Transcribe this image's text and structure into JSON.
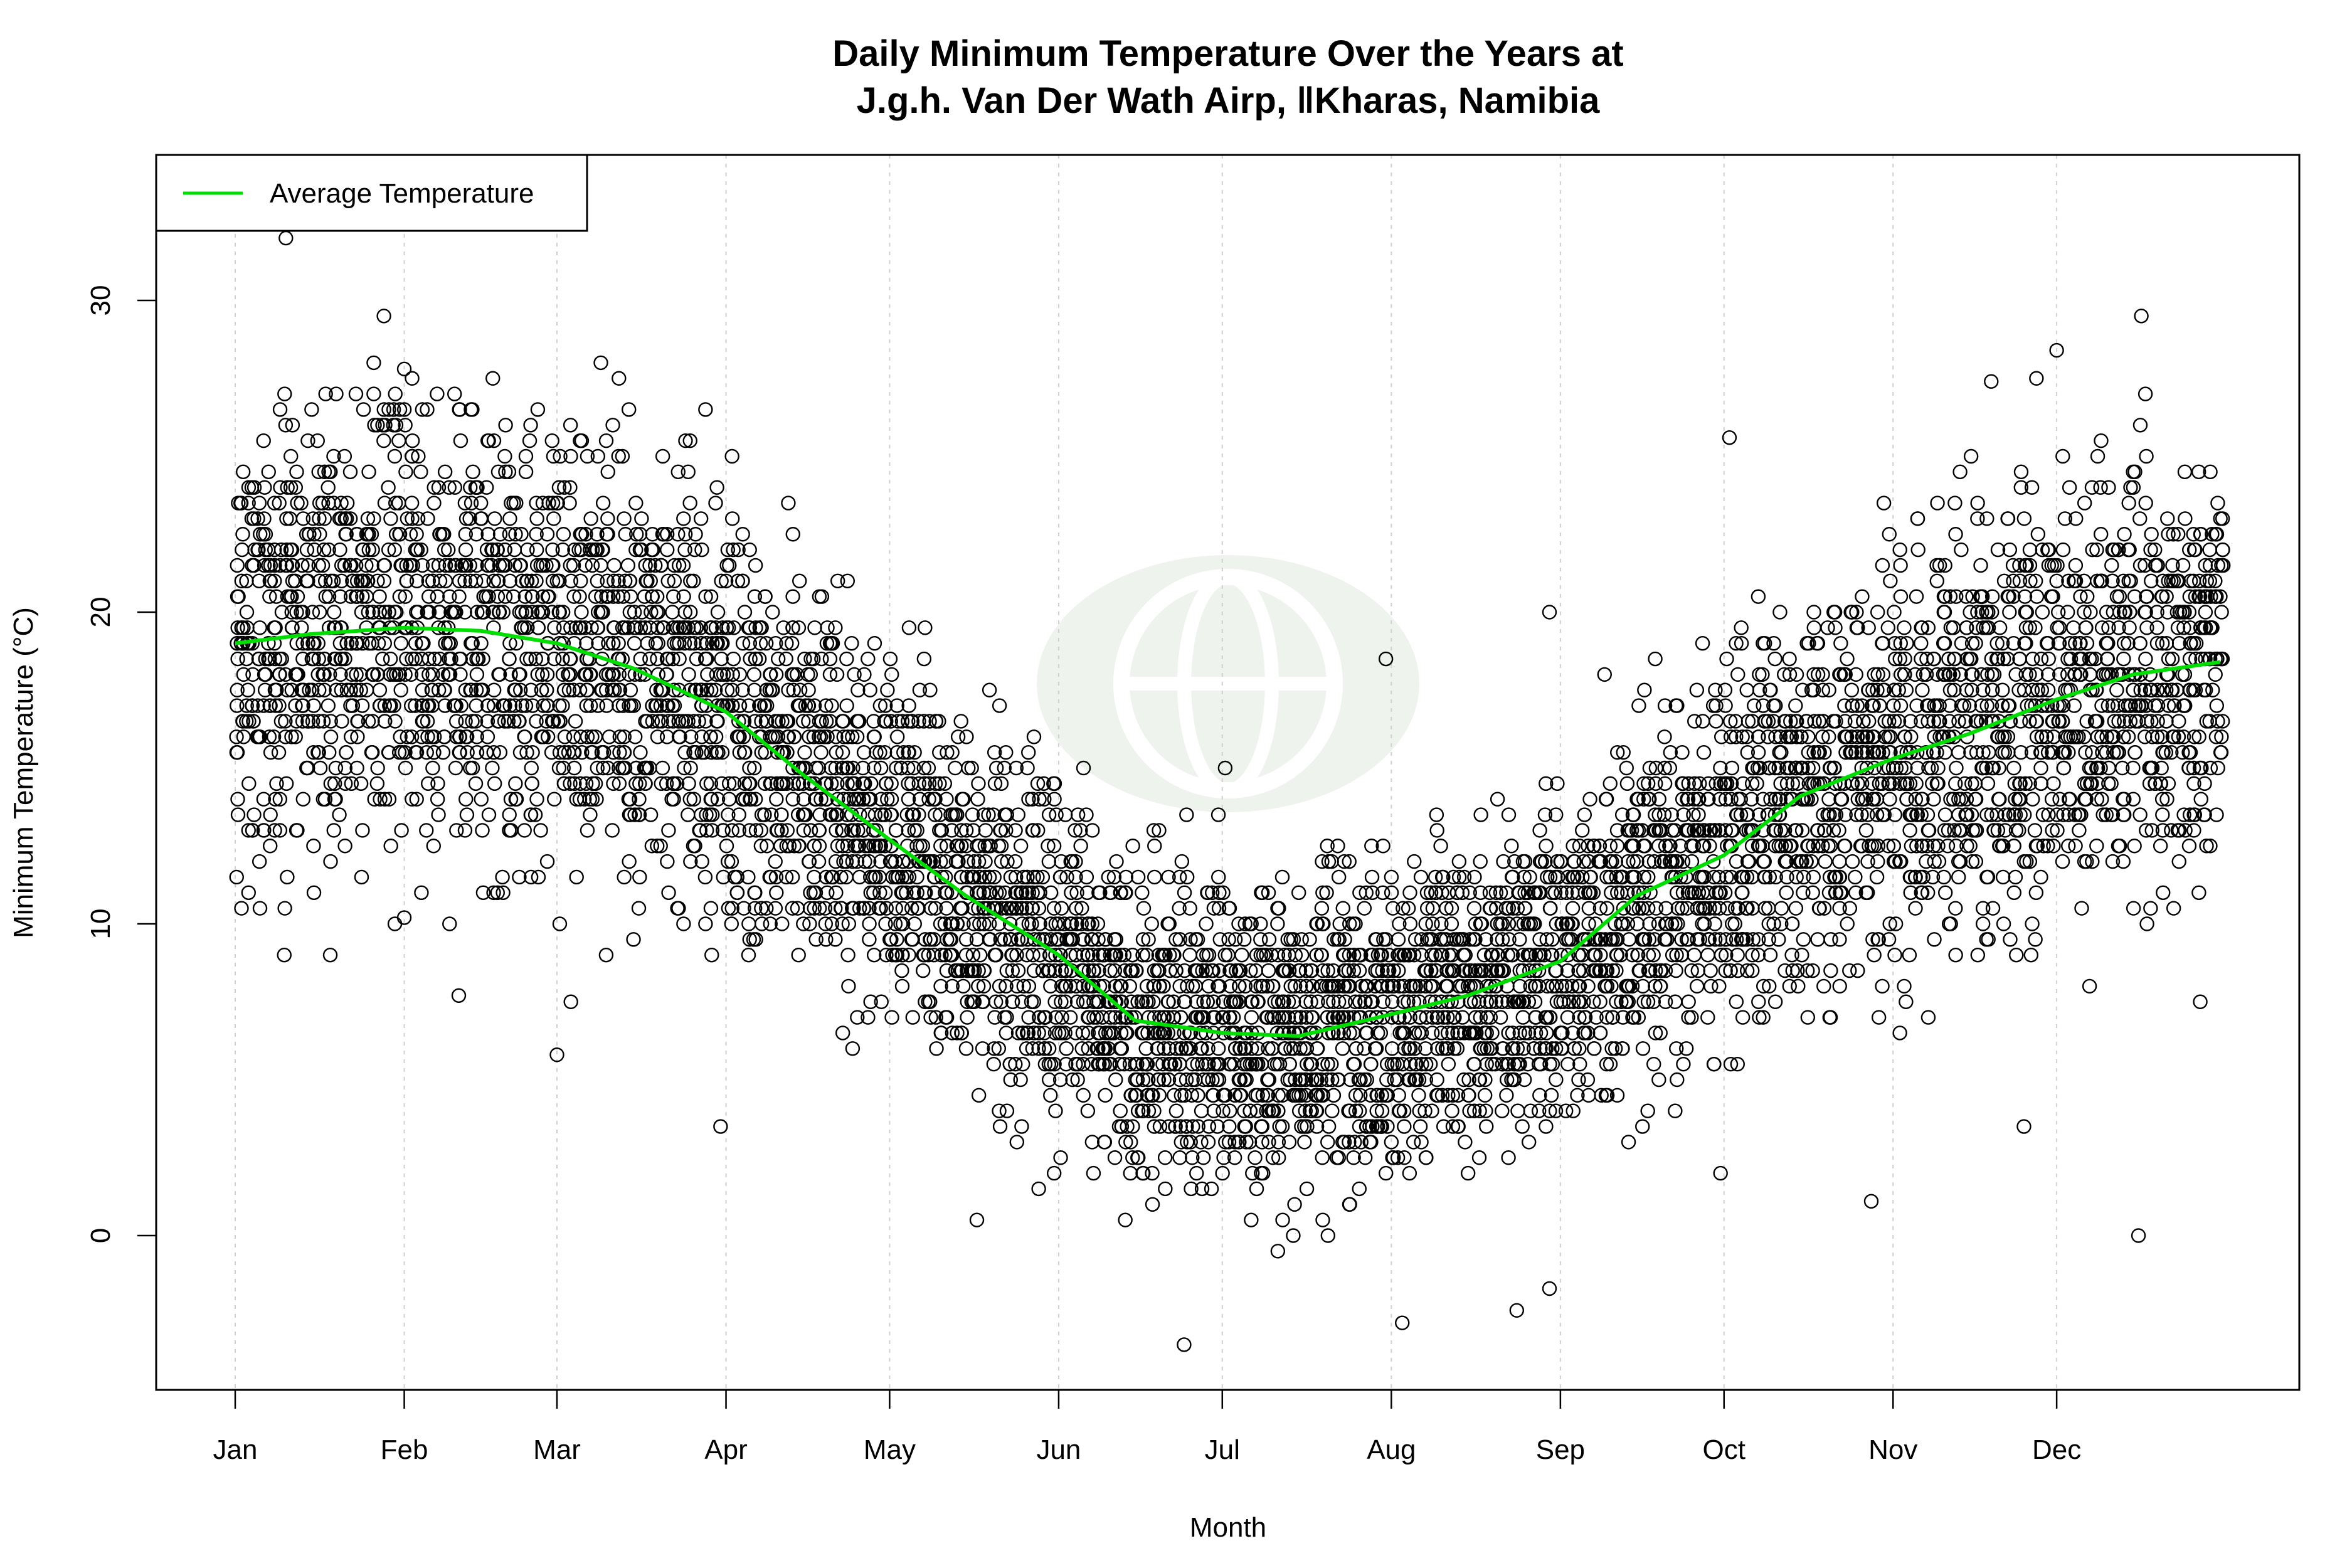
{
  "chart_data": {
    "type": "scatter",
    "title_lines": [
      "Daily Minimum Temperature Over the Years at",
      "J.g.h. Van Der Wath Airp, ǁKharas, Namibia"
    ],
    "xlabel": "Month",
    "ylabel": "Minimum Temperature (°C)",
    "x_ticks": [
      {
        "label": "Jan",
        "day": 1
      },
      {
        "label": "Feb",
        "day": 32
      },
      {
        "label": "Mar",
        "day": 60
      },
      {
        "label": "Apr",
        "day": 91
      },
      {
        "label": "May",
        "day": 121
      },
      {
        "label": "Jun",
        "day": 152
      },
      {
        "label": "Jul",
        "day": 182
      },
      {
        "label": "Aug",
        "day": 213
      },
      {
        "label": "Sep",
        "day": 244
      },
      {
        "label": "Oct",
        "day": 274
      },
      {
        "label": "Nov",
        "day": 305
      },
      {
        "label": "Dec",
        "day": 335
      }
    ],
    "xlim": [
      -5,
      380
    ],
    "ylim": [
      -5,
      34.7
    ],
    "y_ticks": [
      0,
      10,
      20,
      30
    ],
    "grid": "vertical dotted at month ticks",
    "legend": {
      "placement": "top-left",
      "entries": [
        {
          "name": "Average Temperature",
          "color": "#00dd00"
        }
      ]
    },
    "series": [
      {
        "name": "Average Temperature",
        "type": "line",
        "color": "#00dd00",
        "day": [
          1,
          15,
          32,
          46,
          60,
          74,
          91,
          105,
          121,
          135,
          152,
          166,
          182,
          196,
          213,
          227,
          244,
          258,
          274,
          288,
          305,
          319,
          335,
          349,
          365
        ],
        "temp": [
          19.0,
          19.3,
          19.5,
          19.4,
          19.0,
          18.2,
          16.8,
          14.8,
          12.7,
          10.9,
          9.0,
          6.9,
          6.5,
          6.4,
          7.1,
          7.7,
          8.8,
          10.9,
          12.2,
          14.1,
          15.3,
          16.1,
          17.2,
          18.0,
          18.4
        ]
      },
      {
        "type": "scatter",
        "marker": "open circle",
        "color": "#000000",
        "notable_points": [
          [
            175,
            -3.5
          ],
          [
            335,
            28.4
          ],
          [
            350,
            0.0
          ],
          [
            301,
            1.1
          ],
          [
            60,
            5.8
          ],
          [
            10,
            9.0
          ],
          [
            32,
            10.2
          ],
          [
            42,
            7.7
          ],
          [
            323,
            27.4
          ],
          [
            32,
            27.8
          ],
          [
            212,
            18.5
          ],
          [
            242,
            20.0
          ],
          [
            329,
            3.5
          ],
          [
            275,
            25.6
          ],
          [
            90,
            3.5
          ],
          [
            137,
            0.5
          ],
          [
            242,
            -1.7
          ],
          [
            236,
            -2.4
          ],
          [
            215,
            -2.8
          ]
        ]
      }
    ]
  },
  "watermark": {
    "icon": "globe-icon",
    "color": "#e8f0e8"
  }
}
